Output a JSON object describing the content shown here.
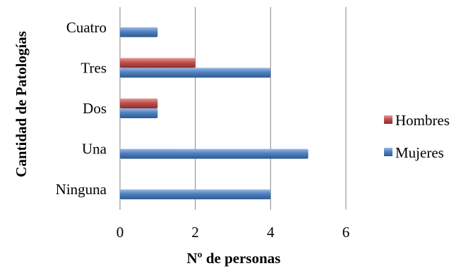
{
  "chart_data": {
    "type": "bar",
    "orientation": "horizontal",
    "categories": [
      "Ninguna",
      "Una",
      "Dos",
      "Tres",
      "Cuatro"
    ],
    "series": [
      {
        "name": "Mujeres",
        "values": [
          4,
          5,
          1,
          4,
          1
        ],
        "color": "#4F81BD"
      },
      {
        "name": "Hombres",
        "values": [
          null,
          null,
          1,
          2,
          null
        ],
        "color": "#C0504D"
      }
    ],
    "xlabel": "Nº de personas",
    "ylabel": "Cantidad de Patologías",
    "xlim": [
      0,
      6
    ],
    "x_ticks": [
      0,
      2,
      4,
      6
    ],
    "grid": "vertical",
    "legend_position": "right",
    "legend_order": [
      "Hombres",
      "Mujeres"
    ]
  }
}
